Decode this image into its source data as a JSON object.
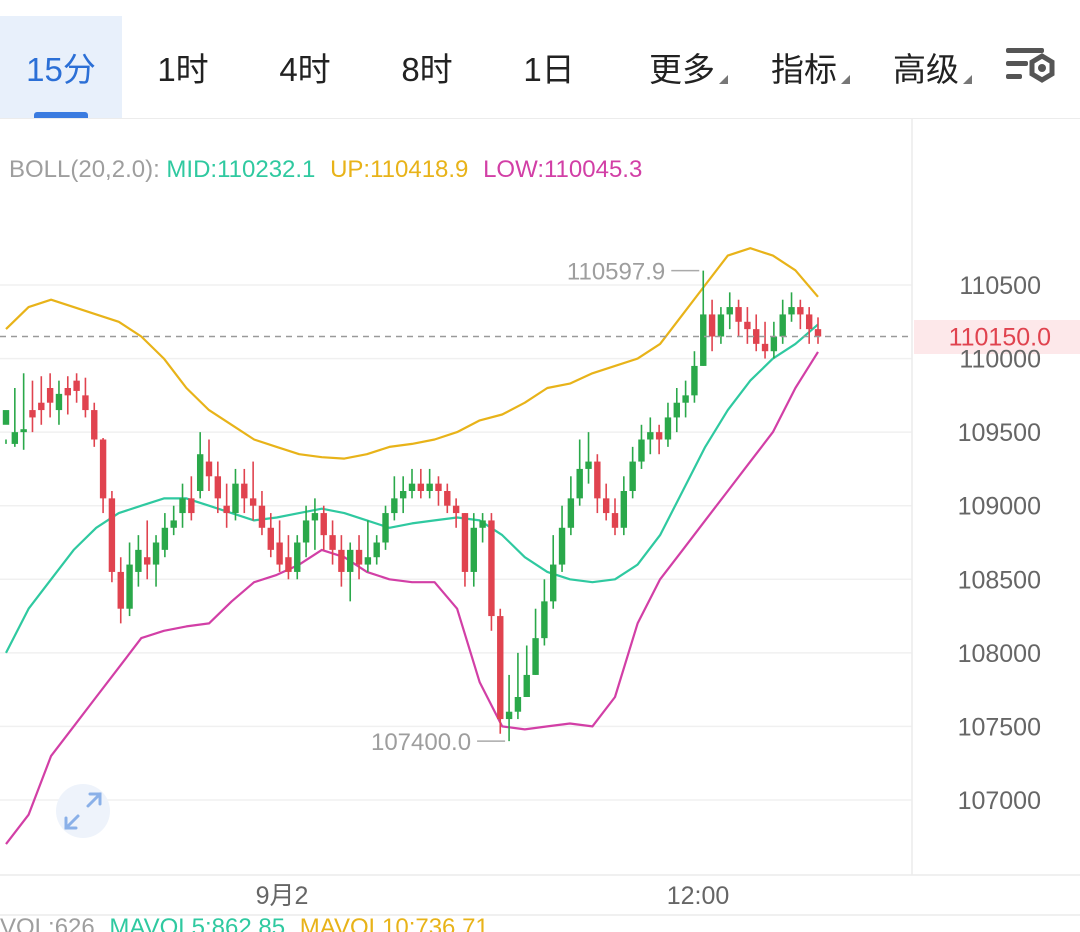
{
  "tabs": [
    {
      "label": "15分",
      "active": true
    },
    {
      "label": "1时"
    },
    {
      "label": "4时"
    },
    {
      "label": "8时"
    },
    {
      "label": "1日"
    },
    {
      "label": "更多",
      "dropdown": true
    },
    {
      "label": "指标",
      "dropdown": true
    },
    {
      "label": "高级",
      "dropdown": true
    }
  ],
  "settings_icon": "chart-settings-icon",
  "indicator": {
    "name": "BOLL(20,2.0):",
    "mid": "MID:110232.1",
    "up": "UP:110418.9",
    "low": "LOW:110045.3"
  },
  "price_axis": {
    "ticks": [
      "110500",
      "110000",
      "109500",
      "109000",
      "108500",
      "108000",
      "107500",
      "107000"
    ],
    "last_price": "110150.0"
  },
  "time_axis": {
    "labels": [
      "9月2",
      "12:00"
    ]
  },
  "annotations": {
    "high": "110597.9",
    "low": "107400.0"
  },
  "volume_bar": {
    "vol": "VOL:626",
    "mavol5": "MAVOL5:862.85",
    "mavol10": "MAVOL10:736.71"
  },
  "colors": {
    "accent": "#2b6fd6",
    "up": "#2aa84a",
    "down": "#e0434f",
    "mid": "#2fc9a0",
    "upper": "#e8b319",
    "lower": "#d23fa6",
    "boll_label": "#9e9e9e"
  },
  "chart_data": {
    "type": "candlestick",
    "y_range": [
      106600,
      110900
    ],
    "candles": [
      [
        109550,
        109650,
        109450,
        109420
      ],
      [
        109420,
        109500,
        109800,
        109400
      ],
      [
        109500,
        109520,
        109900,
        109380
      ],
      [
        109650,
        109600,
        109850,
        109500
      ],
      [
        109700,
        109650,
        109880,
        109550
      ],
      [
        109800,
        109700,
        109900,
        109600
      ],
      [
        109650,
        109760,
        109850,
        109550
      ],
      [
        109800,
        109750,
        109880,
        109620
      ],
      [
        109850,
        109780,
        109900,
        109700
      ],
      [
        109750,
        109650,
        109870,
        109600
      ],
      [
        109650,
        109450,
        109700,
        109400
      ],
      [
        109450,
        109050,
        109460,
        108950
      ],
      [
        109050,
        108550,
        109100,
        108480
      ],
      [
        108550,
        108300,
        108650,
        108200
      ],
      [
        108300,
        108600,
        108750,
        108250
      ],
      [
        108550,
        108700,
        108800,
        108450
      ],
      [
        108650,
        108600,
        108900,
        108500
      ],
      [
        108600,
        108750,
        108800,
        108450
      ],
      [
        108700,
        108850,
        108950,
        108650
      ],
      [
        108850,
        108900,
        109000,
        108800
      ],
      [
        108950,
        109050,
        109150,
        108850
      ],
      [
        109050,
        108950,
        109200,
        108900
      ],
      [
        109100,
        109350,
        109500,
        109050
      ],
      [
        109300,
        109200,
        109450,
        109100
      ],
      [
        109200,
        109050,
        109300,
        108950
      ],
      [
        109000,
        108950,
        109150,
        108850
      ],
      [
        108950,
        109150,
        109250,
        108900
      ],
      [
        109150,
        109050,
        109250,
        108950
      ],
      [
        109050,
        109000,
        109300,
        108900
      ],
      [
        109000,
        108850,
        109100,
        108800
      ],
      [
        108850,
        108700,
        108950,
        108650
      ],
      [
        108750,
        108600,
        108900,
        108550
      ],
      [
        108650,
        108550,
        108800,
        108500
      ],
      [
        108550,
        108750,
        108800,
        108500
      ],
      [
        108750,
        108900,
        109000,
        108650
      ],
      [
        108900,
        108950,
        109050,
        108700
      ],
      [
        108950,
        108800,
        109000,
        108700
      ],
      [
        108800,
        108700,
        108900,
        108600
      ],
      [
        108700,
        108550,
        108800,
        108450
      ],
      [
        108550,
        108700,
        108750,
        108350
      ],
      [
        108700,
        108600,
        108800,
        108500
      ],
      [
        108600,
        108650,
        108900,
        108550
      ],
      [
        108650,
        108750,
        108800,
        108600
      ],
      [
        108750,
        108950,
        109000,
        108700
      ],
      [
        108950,
        109050,
        109200,
        108900
      ],
      [
        109050,
        109100,
        109200,
        108950
      ],
      [
        109100,
        109150,
        109250,
        109050
      ],
      [
        109150,
        109100,
        109250,
        109050
      ],
      [
        109100,
        109150,
        109250,
        109050
      ],
      [
        109150,
        109100,
        109200,
        109000
      ],
      [
        109100,
        109000,
        109150,
        108950
      ],
      [
        109000,
        108950,
        109050,
        108850
      ],
      [
        108950,
        108550,
        108950,
        108450
      ],
      [
        108550,
        108850,
        108950,
        108450
      ],
      [
        108850,
        108900,
        108950,
        108750
      ],
      [
        108900,
        108250,
        108950,
        108150
      ],
      [
        108250,
        107550,
        108300,
        107450
      ],
      [
        107550,
        107600,
        107850,
        107400
      ],
      [
        107600,
        107700,
        108000,
        107550
      ],
      [
        107700,
        107850,
        108050,
        107700
      ],
      [
        107850,
        108100,
        108300,
        107850
      ],
      [
        108100,
        108350,
        108500,
        108050
      ],
      [
        108350,
        108600,
        108800,
        108300
      ],
      [
        108600,
        108850,
        109000,
        108550
      ],
      [
        108850,
        109050,
        109200,
        108800
      ],
      [
        109050,
        109250,
        109450,
        109000
      ],
      [
        109250,
        109300,
        109500,
        109150
      ],
      [
        109300,
        109050,
        109350,
        108950
      ],
      [
        109050,
        108950,
        109150,
        108900
      ],
      [
        108950,
        108850,
        109050,
        108800
      ],
      [
        108850,
        109100,
        109200,
        108800
      ],
      [
        109100,
        109300,
        109400,
        109050
      ],
      [
        109300,
        109450,
        109550,
        109250
      ],
      [
        109450,
        109500,
        109600,
        109350
      ],
      [
        109500,
        109450,
        109550,
        109350
      ],
      [
        109450,
        109600,
        109700,
        109400
      ],
      [
        109600,
        109700,
        109800,
        109500
      ],
      [
        109700,
        109750,
        109850,
        109600
      ],
      [
        109750,
        109950,
        110050,
        109700
      ],
      [
        109950,
        110300,
        110597.9,
        109950
      ],
      [
        110300,
        110150,
        110400,
        110050
      ],
      [
        110150,
        110300,
        110350,
        110100
      ],
      [
        110300,
        110350,
        110450,
        110200
      ],
      [
        110350,
        110250,
        110400,
        110150
      ],
      [
        110250,
        110200,
        110350,
        110100
      ],
      [
        110200,
        110100,
        110300,
        110050
      ],
      [
        110100,
        110050,
        110250,
        110000
      ],
      [
        110050,
        110150,
        110250,
        110000
      ],
      [
        110150,
        110300,
        110400,
        110100
      ],
      [
        110300,
        110350,
        110450,
        110250
      ],
      [
        110350,
        110300,
        110400,
        110200
      ],
      [
        110300,
        110200,
        110350,
        110100
      ],
      [
        110200,
        110150,
        110280,
        110100
      ]
    ],
    "boll_upper": [
      110200,
      110350,
      110400,
      110350,
      110300,
      110250,
      110150,
      110000,
      109800,
      109650,
      109550,
      109450,
      109400,
      109350,
      109330,
      109320,
      109350,
      109400,
      109420,
      109450,
      109500,
      109580,
      109620,
      109700,
      109800,
      109830,
      109900,
      109950,
      110000,
      110100,
      110300,
      110500,
      110700,
      110750,
      110700,
      110600,
      110420
    ],
    "boll_mid": [
      108000,
      108300,
      108500,
      108700,
      108850,
      108950,
      109000,
      109050,
      109050,
      109000,
      108950,
      108900,
      108920,
      108950,
      108980,
      108950,
      108900,
      108850,
      108880,
      108900,
      108920,
      108900,
      108800,
      108650,
      108550,
      108500,
      108480,
      108500,
      108600,
      108800,
      109100,
      109400,
      109650,
      109850,
      110000,
      110100,
      110232
    ],
    "boll_lower": [
      106700,
      106900,
      107300,
      107500,
      107700,
      107900,
      108100,
      108150,
      108180,
      108200,
      108350,
      108480,
      108530,
      108600,
      108700,
      108650,
      108550,
      108500,
      108480,
      108480,
      108300,
      107800,
      107500,
      107480,
      107500,
      107520,
      107500,
      107700,
      108200,
      108500,
      108700,
      108900,
      109100,
      109300,
      109500,
      109800,
      110045
    ],
    "ylabels": [
      "110500",
      "110000",
      "109500",
      "109000",
      "108500",
      "108000",
      "107500",
      "107000"
    ],
    "xlabels": [
      "9月2",
      "12:00"
    ]
  }
}
